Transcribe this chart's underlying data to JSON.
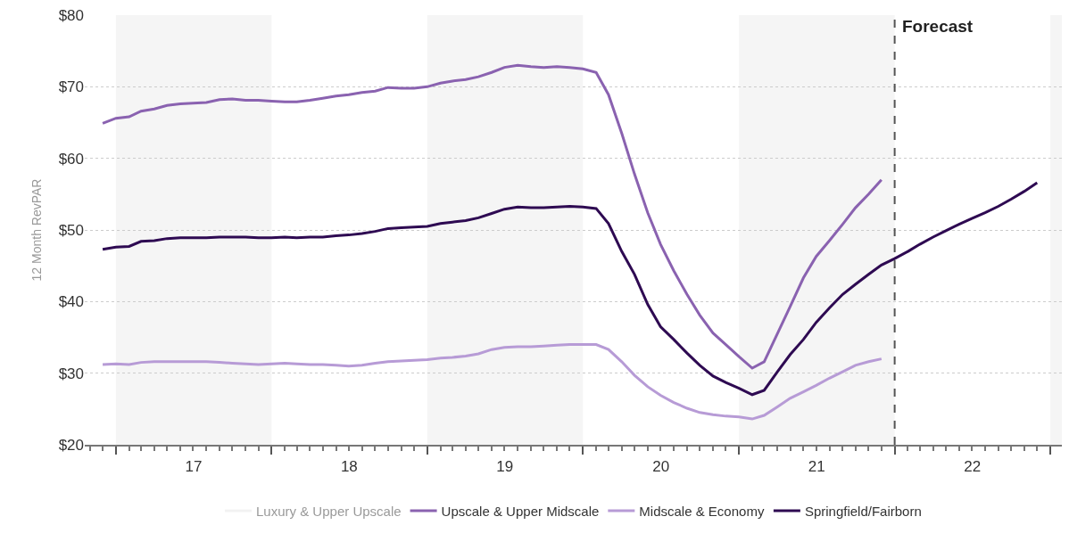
{
  "chart_data": {
    "type": "line",
    "ylabel": "12 Month RevPAR",
    "x": [
      "2016-12",
      "2017-01",
      "2017-02",
      "2017-03",
      "2017-04",
      "2017-05",
      "2017-06",
      "2017-07",
      "2017-08",
      "2017-09",
      "2017-10",
      "2017-11",
      "2017-12",
      "2018-01",
      "2018-02",
      "2018-03",
      "2018-04",
      "2018-05",
      "2018-06",
      "2018-07",
      "2018-08",
      "2018-09",
      "2018-10",
      "2018-11",
      "2018-12",
      "2019-01",
      "2019-02",
      "2019-03",
      "2019-04",
      "2019-05",
      "2019-06",
      "2019-07",
      "2019-08",
      "2019-09",
      "2019-10",
      "2019-11",
      "2019-12",
      "2020-01",
      "2020-02",
      "2020-03",
      "2020-04",
      "2020-05",
      "2020-06",
      "2020-07",
      "2020-08",
      "2020-09",
      "2020-10",
      "2020-11",
      "2020-12",
      "2021-01",
      "2021-02",
      "2021-03",
      "2021-04",
      "2021-05",
      "2021-06",
      "2021-07",
      "2021-08",
      "2021-09",
      "2021-10",
      "2021-11",
      "2021-12",
      "2022-01",
      "2022-02",
      "2022-03",
      "2022-04",
      "2022-05",
      "2022-06",
      "2022-07",
      "2022-08",
      "2022-09",
      "2022-10",
      "2022-11",
      "2022-12"
    ],
    "series": [
      {
        "name": "Luxury & Upper Upscale",
        "color": "#e6e6e6",
        "values": [
          null,
          null,
          null,
          null,
          null,
          null,
          null,
          null,
          null,
          null,
          null,
          null,
          null,
          null,
          null,
          null,
          null,
          null,
          null,
          null,
          null,
          null,
          null,
          null,
          null,
          null,
          null,
          null,
          null,
          null,
          null,
          null,
          null,
          null,
          null,
          null,
          null,
          null,
          null,
          null,
          null,
          null,
          null,
          null,
          null,
          null,
          null,
          null,
          null,
          null,
          null,
          null,
          null,
          null,
          null,
          null,
          null,
          null,
          null,
          null,
          null,
          null,
          null,
          null,
          null,
          null,
          null,
          null,
          null,
          null,
          null,
          null,
          null
        ]
      },
      {
        "name": "Upscale & Upper Midscale",
        "color": "#8a62b0",
        "values": [
          64.9,
          65.6,
          65.8,
          66.6,
          66.9,
          67.4,
          67.6,
          67.7,
          67.8,
          68.2,
          68.3,
          68.1,
          68.1,
          68.0,
          67.9,
          67.9,
          68.1,
          68.4,
          68.7,
          68.9,
          69.2,
          69.4,
          69.9,
          69.8,
          69.8,
          70.0,
          70.5,
          70.8,
          71.0,
          71.4,
          72.0,
          72.7,
          73.0,
          72.8,
          72.7,
          72.8,
          72.7,
          72.5,
          72.0,
          68.9,
          63.5,
          57.8,
          52.4,
          48.0,
          44.3,
          41.0,
          38.1,
          35.6,
          34.0,
          32.3,
          30.7,
          31.6,
          35.5,
          39.3,
          43.3,
          46.3,
          48.5,
          50.8,
          53.1,
          55.0,
          57.0,
          null,
          null,
          null,
          null,
          null,
          null,
          null,
          null,
          null,
          null,
          null,
          null
        ]
      },
      {
        "name": "Midscale & Economy",
        "color": "#b79bd6",
        "values": [
          31.2,
          31.3,
          31.2,
          31.5,
          31.6,
          31.6,
          31.6,
          31.6,
          31.6,
          31.5,
          31.4,
          31.3,
          31.2,
          31.3,
          31.4,
          31.3,
          31.2,
          31.2,
          31.1,
          31.0,
          31.1,
          31.4,
          31.6,
          31.7,
          31.8,
          31.9,
          32.1,
          32.2,
          32.4,
          32.7,
          33.3,
          33.6,
          33.7,
          33.7,
          33.8,
          33.9,
          34.0,
          34.0,
          34.0,
          33.3,
          31.6,
          29.7,
          28.1,
          26.9,
          25.9,
          25.1,
          24.5,
          24.2,
          24.0,
          23.9,
          23.6,
          24.1,
          25.3,
          26.5,
          27.4,
          28.3,
          29.3,
          30.2,
          31.1,
          31.6,
          32.0,
          null,
          null,
          null,
          null,
          null,
          null,
          null,
          null,
          null,
          null,
          null,
          null
        ]
      },
      {
        "name": "Springfield/Fairborn",
        "color": "#2e0a52",
        "values": [
          47.3,
          47.6,
          47.7,
          48.4,
          48.5,
          48.8,
          48.9,
          48.9,
          48.9,
          49.0,
          49.0,
          49.0,
          48.9,
          48.9,
          49.0,
          48.9,
          49.0,
          49.0,
          49.2,
          49.3,
          49.5,
          49.8,
          50.2,
          50.3,
          50.4,
          50.5,
          50.9,
          51.1,
          51.3,
          51.7,
          52.3,
          52.9,
          53.2,
          53.1,
          53.1,
          53.2,
          53.3,
          53.2,
          53.0,
          50.9,
          47.0,
          43.8,
          39.6,
          36.5,
          34.7,
          32.8,
          31.1,
          29.6,
          28.7,
          27.9,
          27.0,
          27.6,
          30.2,
          32.6,
          34.7,
          37.1,
          39.1,
          41.0,
          42.4,
          43.8,
          45.1,
          46.0,
          47.0,
          48.0,
          49.0,
          49.9,
          50.8,
          51.6,
          52.4,
          53.3,
          54.3,
          55.4,
          56.6
        ]
      }
    ],
    "xlim": [
      "2016-10-20",
      "2023-01-28"
    ],
    "xticks": [
      {
        "value": "2017-01-01",
        "label": null
      },
      {
        "value": "2018-01-01",
        "label": null
      },
      {
        "value": "2019-01-01",
        "label": null
      },
      {
        "value": "2020-01-01",
        "label": null
      },
      {
        "value": "2021-01-01",
        "label": null
      },
      {
        "value": "2022-01-01",
        "label": null
      },
      {
        "value": "2023-01-01",
        "label": null
      },
      {
        "value": "2017-07-02",
        "label": "17"
      },
      {
        "value": "2018-07-02",
        "label": "18"
      },
      {
        "value": "2019-07-02",
        "label": "19"
      },
      {
        "value": "2020-07-02",
        "label": "20"
      },
      {
        "value": "2021-07-02",
        "label": "21"
      },
      {
        "value": "2022-07-02",
        "label": "22"
      }
    ],
    "ylim": [
      20,
      80
    ],
    "yticks": [
      {
        "value": 20,
        "label": "$20"
      },
      {
        "value": 30,
        "label": "$30"
      },
      {
        "value": 40,
        "label": "$40"
      },
      {
        "value": 50,
        "label": "$50"
      },
      {
        "value": 60,
        "label": "$60"
      },
      {
        "value": 70,
        "label": "$70"
      },
      {
        "value": 80,
        "label": "$80"
      }
    ],
    "grid": "y",
    "legend": "bottom",
    "marker": "none",
    "line_style": "solid",
    "bands": [
      {
        "axis": "x",
        "from": "2017-01-01",
        "to": "2018-01-01",
        "color": "#f5f5f5"
      },
      {
        "axis": "x",
        "from": "2019-01-01",
        "to": "2020-01-01",
        "color": "#f5f5f5"
      },
      {
        "axis": "x",
        "from": "2021-01-01",
        "to": "2022-01-01",
        "color": "#f5f5f5"
      },
      {
        "axis": "x",
        "from": "2023-01-01",
        "to": "2023-01-28",
        "color": "#f5f5f5"
      }
    ],
    "ref_lines": [
      {
        "axis": "x",
        "value": "2022-01-01",
        "label": "Forecast",
        "color": "#555555",
        "line_style": "dashed"
      }
    ]
  }
}
